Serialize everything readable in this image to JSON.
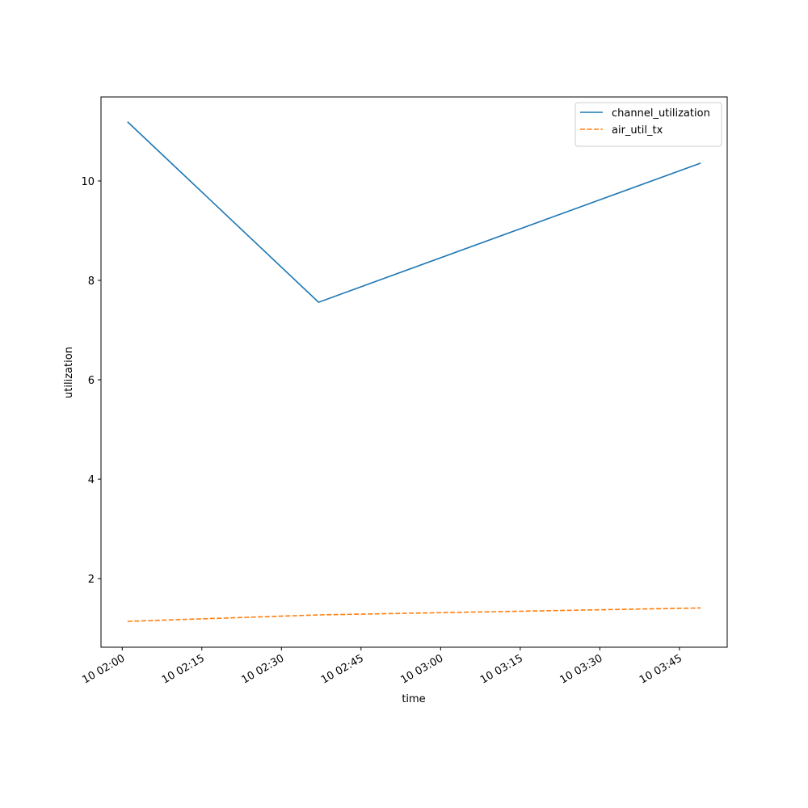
{
  "chart_data": {
    "type": "line",
    "x_label": "time",
    "y_label": "utilization",
    "x": [
      "10 02:01",
      "10 02:37",
      "10 03:49"
    ],
    "series": [
      {
        "name": "channel_utilization",
        "color": "#1f77b4",
        "linestyle": "solid",
        "values": [
          11.19,
          7.56,
          10.36
        ]
      },
      {
        "name": "air_util_tx",
        "color": "#ff7f0e",
        "linestyle": "dashed",
        "values": [
          1.14,
          1.27,
          1.41
        ]
      }
    ],
    "xlim": [
      "10 01:56",
      "10 03:54"
    ],
    "xticks": [
      "10 02:00",
      "10 02:15",
      "10 02:30",
      "10 02:45",
      "10 03:00",
      "10 03:15",
      "10 03:30",
      "10 03:45"
    ],
    "ylim": [
      0.62,
      11.69
    ],
    "yticks": [
      2,
      4,
      6,
      8,
      10
    ],
    "legend": "upper right"
  }
}
